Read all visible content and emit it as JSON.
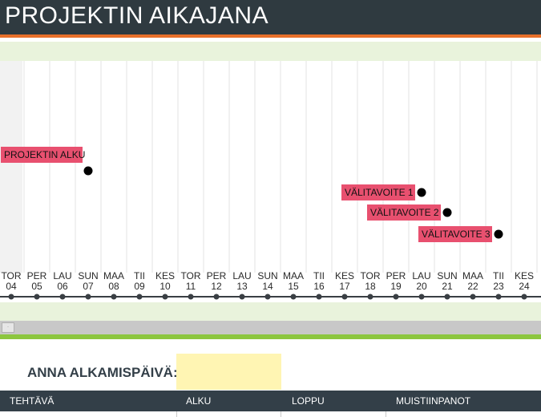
{
  "title": "PROJEKTIN AIKAJANA",
  "days": [
    {
      "name": "TOR",
      "num": "04"
    },
    {
      "name": "PER",
      "num": "05"
    },
    {
      "name": "LAU",
      "num": "06"
    },
    {
      "name": "SUN",
      "num": "07"
    },
    {
      "name": "MAA",
      "num": "08"
    },
    {
      "name": "TII",
      "num": "09"
    },
    {
      "name": "KES",
      "num": "10"
    },
    {
      "name": "TOR",
      "num": "11"
    },
    {
      "name": "PER",
      "num": "12"
    },
    {
      "name": "LAU",
      "num": "13"
    },
    {
      "name": "SUN",
      "num": "14"
    },
    {
      "name": "MAA",
      "num": "15"
    },
    {
      "name": "TII",
      "num": "16"
    },
    {
      "name": "KES",
      "num": "17"
    },
    {
      "name": "TOR",
      "num": "18"
    },
    {
      "name": "PER",
      "num": "19"
    },
    {
      "name": "LAU",
      "num": "20"
    },
    {
      "name": "SUN",
      "num": "21"
    },
    {
      "name": "MAA",
      "num": "22"
    },
    {
      "name": "TII",
      "num": "23"
    },
    {
      "name": "KES",
      "num": "24"
    }
  ],
  "milestones": [
    {
      "label": "PROJEKTIN ALKU",
      "day_index": 3,
      "level": 1
    },
    {
      "label": "VÄLITAVOITE 1",
      "day_index": 16,
      "level": 2
    },
    {
      "label": "VÄLITAVOITE 2",
      "day_index": 17,
      "level": 3
    },
    {
      "label": "VÄLITAVOITE 3",
      "day_index": 19,
      "level": 4
    }
  ],
  "start_date": {
    "label": "ANNA ALKAMISPÄIVÄ:",
    "value": ""
  },
  "table": {
    "columns": [
      "TEHTÄVÄ",
      "ALKU",
      "LOPPU",
      "MUISTIINPANOT"
    ]
  },
  "scroll_thumb_glyph": "·",
  "colors": {
    "title_bar": "#2f3a40",
    "accent": "#e8702a",
    "milestone_label": "#e8506f",
    "band": "#e9f3dc",
    "start_input": "#fff5b3",
    "green_strip": "#8cc63f"
  }
}
